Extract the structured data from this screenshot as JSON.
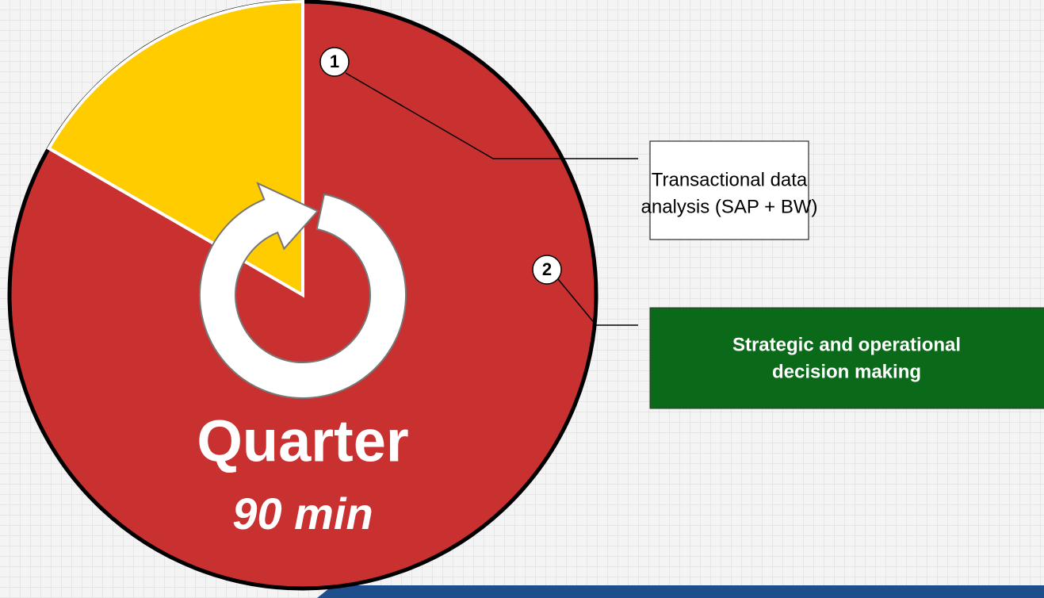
{
  "diagram": {
    "center_label": "Quarter",
    "center_sublabel": "90 min",
    "callouts": [
      {
        "number": "1",
        "label_lines": [
          "Transactional data",
          "analysis (SAP + BW)"
        ]
      },
      {
        "number": "2",
        "label_lines": [
          "Strategic and operational",
          "decision making"
        ]
      }
    ]
  }
}
